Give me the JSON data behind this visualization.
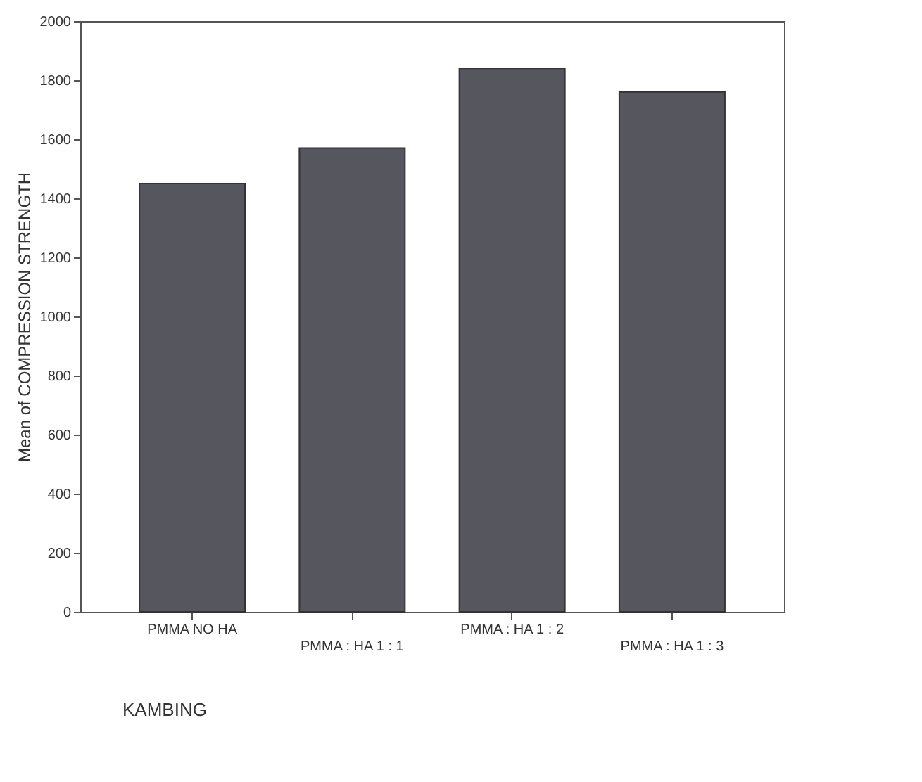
{
  "chart_data": {
    "type": "bar",
    "ylabel": "Mean of COMPRESSION STRENGTH",
    "categories": [
      "PMMA NO HA",
      "PMMA : HA 1 : 1",
      "PMMA : HA 1 : 2",
      "PMMA : HA 1 : 3"
    ],
    "values": [
      1450,
      1570,
      1840,
      1760
    ],
    "color": "#56565e",
    "ylim": [
      0,
      2000
    ],
    "yticks": [
      0,
      200,
      400,
      600,
      800,
      1000,
      1200,
      1400,
      1600,
      1800,
      2000
    ],
    "grid": false,
    "annotations": [
      "KAMBING"
    ]
  }
}
